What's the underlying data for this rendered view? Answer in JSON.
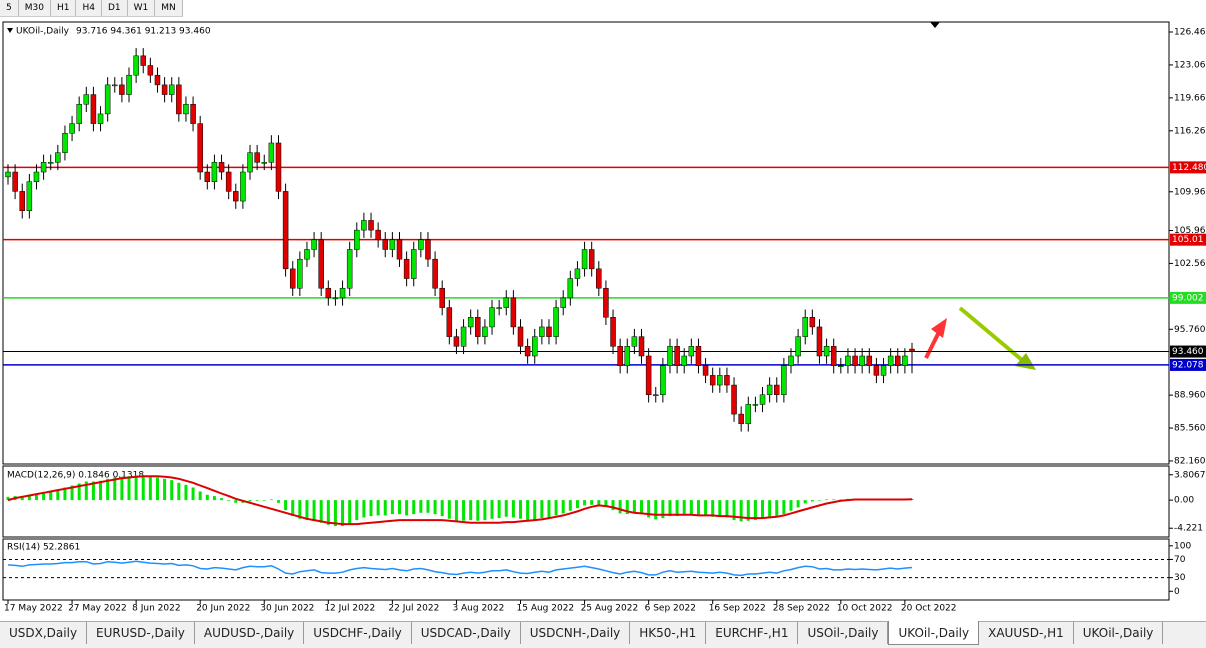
{
  "toolbar": [
    "5",
    "M30",
    "H1",
    "H4",
    "D1",
    "W1",
    "MN"
  ],
  "chart_data": [
    {
      "type": "candlestick",
      "title": "UKOil-,Daily",
      "ohlc_header": "93.716 94.361 91.213 93.460",
      "categories": [
        "17 May 2022",
        null,
        null,
        null,
        null,
        null,
        null,
        null,
        null,
        "27 May 2022",
        null,
        null,
        null,
        null,
        null,
        null,
        null,
        null,
        "8 Jun 2022",
        null,
        null,
        null,
        null,
        null,
        null,
        null,
        null,
        "20 Jun 2022",
        null,
        null,
        null,
        null,
        null,
        null,
        null,
        null,
        "30 Jun 2022",
        null,
        null,
        null,
        null,
        null,
        null,
        null,
        null,
        "12 Jul 2022",
        null,
        null,
        null,
        null,
        null,
        null,
        null,
        null,
        "22 Jul 2022",
        null,
        null,
        null,
        null,
        null,
        null,
        null,
        null,
        "3 Aug 2022",
        null,
        null,
        null,
        null,
        null,
        null,
        null,
        null,
        "15 Aug 2022",
        null,
        null,
        null,
        null,
        null,
        null,
        null,
        null,
        "25 Aug 2022",
        null,
        null,
        null,
        null,
        null,
        null,
        null,
        null,
        "6 Sep 2022",
        null,
        null,
        null,
        null,
        null,
        null,
        null,
        null,
        "16 Sep 2022",
        null,
        null,
        null,
        null,
        null,
        null,
        null,
        null,
        "28 Sep 2022",
        null,
        null,
        null,
        null,
        null,
        null,
        null,
        null,
        "10 Oct 2022",
        null,
        null,
        null,
        null,
        null,
        null,
        null,
        null,
        "20 Oct 2022",
        null
      ],
      "open": [
        111.5,
        112,
        110,
        108,
        111,
        112,
        113,
        113,
        114,
        116,
        117,
        119,
        120,
        117,
        118,
        121,
        121,
        120,
        122,
        124,
        123,
        122,
        121,
        120,
        121,
        118,
        119,
        117,
        112,
        111,
        113,
        112,
        110,
        109,
        112,
        114,
        113,
        113,
        115,
        110,
        102,
        100,
        103,
        104,
        105,
        100,
        99,
        99,
        100,
        104,
        106,
        107,
        106,
        105,
        104,
        105,
        103,
        101,
        104,
        105,
        103,
        100,
        98,
        95,
        94,
        96,
        97,
        95,
        96,
        98,
        98,
        99,
        96,
        94,
        93,
        95,
        96,
        95,
        98,
        99,
        101,
        102,
        104,
        102,
        100,
        97,
        94,
        92,
        94,
        95,
        93,
        89,
        89,
        92,
        94,
        92,
        93,
        94,
        92,
        91,
        90,
        91,
        90,
        87,
        86,
        88,
        88,
        89,
        90,
        89,
        92,
        93,
        95,
        97,
        96,
        93,
        94,
        92,
        92,
        93,
        92,
        93,
        92,
        91,
        92,
        93,
        92,
        93.716
      ],
      "high": [
        112.8,
        112.8,
        110.8,
        111.8,
        112.8,
        113.8,
        113.8,
        114.8,
        116.8,
        117.8,
        119.8,
        120.8,
        120.8,
        118.8,
        121.8,
        121.8,
        121.8,
        122.8,
        124.8,
        124.8,
        123.8,
        122.8,
        121.8,
        121.8,
        121.8,
        119.8,
        119.8,
        117.8,
        112.8,
        113.8,
        113.8,
        112.8,
        110.8,
        112.8,
        114.8,
        114.8,
        113.8,
        115.8,
        115.8,
        110.8,
        102.8,
        103.8,
        104.8,
        105.8,
        105.8,
        100.8,
        99.8,
        100.8,
        104.8,
        106.8,
        107.8,
        107.8,
        106.8,
        105.8,
        105.8,
        105.8,
        103.8,
        104.8,
        105.8,
        105.8,
        103.8,
        100.8,
        98.8,
        95.8,
        96.8,
        97.8,
        97.8,
        96.8,
        98.8,
        98.8,
        99.8,
        99.8,
        96.8,
        94.8,
        95.8,
        96.8,
        96.8,
        98.8,
        99.8,
        101.8,
        102.8,
        104.8,
        104.8,
        102.8,
        100.8,
        97.8,
        94.8,
        94.8,
        95.8,
        95.8,
        93.8,
        89.8,
        92.8,
        94.8,
        94.8,
        93.8,
        94.8,
        94.8,
        92.8,
        91.8,
        91.8,
        91.8,
        90.8,
        87.8,
        88.8,
        88.8,
        89.8,
        90.8,
        90.8,
        92.8,
        93.8,
        95.8,
        97.8,
        97.8,
        96.8,
        94.8,
        94.8,
        92.8,
        93.8,
        93.8,
        93.8,
        93.8,
        92.8,
        92.8,
        93.8,
        93.8,
        93.8,
        94.361
      ],
      "low": [
        110.7,
        109.2,
        107.2,
        107.2,
        110.2,
        111.2,
        112.2,
        112.2,
        113.2,
        115.2,
        116.2,
        118.2,
        116.2,
        116.2,
        117.2,
        120.2,
        119.2,
        119.2,
        121.2,
        122.2,
        121.2,
        120.2,
        119.2,
        119.2,
        117.2,
        117.2,
        116.2,
        111.2,
        110.2,
        110.2,
        111.2,
        109.2,
        108.2,
        108.2,
        111.2,
        112.2,
        112.2,
        112.2,
        109.2,
        101.2,
        99.2,
        99.2,
        102.2,
        103.2,
        99.2,
        98.2,
        98.2,
        98.2,
        99.2,
        103.2,
        105.2,
        105.2,
        104.2,
        103.2,
        103.2,
        102.2,
        100.2,
        100.2,
        103.2,
        102.2,
        99.2,
        97.2,
        94.2,
        93.2,
        93.2,
        95.2,
        94.2,
        94.2,
        95.2,
        97.2,
        97.2,
        95.2,
        93.2,
        92.2,
        92.2,
        94.2,
        94.2,
        94.2,
        97.2,
        98.2,
        100.2,
        101.2,
        101.2,
        99.2,
        96.2,
        93.2,
        91.2,
        91.2,
        93.2,
        92.2,
        88.2,
        88.2,
        88.2,
        91.2,
        91.2,
        91.2,
        92.2,
        91.2,
        90.2,
        89.2,
        89.2,
        89.2,
        86.2,
        85.2,
        85.2,
        87.2,
        87.2,
        88.2,
        88.2,
        88.2,
        91.2,
        92.2,
        94.2,
        95.2,
        92.2,
        92.2,
        91.2,
        91.2,
        91.2,
        91.2,
        91.2,
        91.2,
        90.2,
        90.2,
        91.2,
        91.2,
        91.2,
        91.213
      ],
      "close": [
        112,
        110,
        108,
        111,
        112,
        113,
        113,
        114,
        116,
        117,
        119,
        120,
        117,
        118,
        121,
        121,
        120,
        122,
        124,
        123,
        122,
        121,
        120,
        121,
        118,
        119,
        117,
        112,
        111,
        113,
        112,
        110,
        109,
        112,
        114,
        113,
        113,
        115,
        110,
        102,
        100,
        103,
        104,
        105,
        100,
        99,
        99,
        100,
        104,
        106,
        107,
        106,
        105,
        104,
        105,
        103,
        101,
        104,
        105,
        103,
        100,
        98,
        95,
        94,
        96,
        97,
        95,
        96,
        98,
        98,
        99,
        96,
        94,
        93,
        95,
        96,
        95,
        98,
        99,
        101,
        102,
        104,
        102,
        100,
        97,
        94,
        92,
        94,
        95,
        93,
        89,
        89,
        92,
        94,
        92,
        93,
        94,
        92,
        91,
        90,
        91,
        90,
        87,
        86,
        88,
        88,
        89,
        90,
        89,
        92,
        93,
        95,
        97,
        96,
        93,
        94,
        92,
        92,
        93,
        92,
        93,
        92,
        91,
        92,
        93,
        92,
        93,
        93.46
      ],
      "up_color": "#00e600",
      "down_color": "#e00000",
      "ylim": [
        81.95,
        127.39
      ],
      "yticks": [
        {
          "value": 126.46,
          "label": "126.460"
        },
        {
          "value": 123.06,
          "label": "123.060"
        },
        {
          "value": 119.66,
          "label": "119.660"
        },
        {
          "value": 116.26,
          "label": "116.260"
        },
        {
          "value": 109.96,
          "label": "109.960"
        },
        {
          "value": 105.96,
          "label": "105.960"
        },
        {
          "value": 102.56,
          "label": "102.560"
        },
        {
          "value": 95.76,
          "label": "95.760"
        },
        {
          "value": 88.96,
          "label": "88.960"
        },
        {
          "value": 85.56,
          "label": "85.560"
        },
        {
          "value": 82.16,
          "label": "82.160"
        }
      ],
      "levels": [
        {
          "value": 112.48,
          "label": "112.480",
          "color": "#e00000"
        },
        {
          "value": 105.013,
          "label": "105.01",
          "color": "#e00000"
        },
        {
          "value": 99.002,
          "label": "99.002",
          "color": "#22dd22"
        },
        {
          "value": 93.46,
          "label": "93.460",
          "color": "#000000"
        },
        {
          "value": 92.078,
          "label": "92.078",
          "color": "#0000cc"
        }
      ]
    },
    {
      "type": "macd",
      "title": "MACD(12,26,9) 0.1846 0.1318",
      "ylim": [
        -5.389,
        4.975
      ],
      "yticks": [
        3.8067,
        {
          "value": 0,
          "label": "0.00"
        },
        -4.221
      ],
      "histogram": {
        "color": "#00e600",
        "values": [
          0.5,
          0.6,
          0.6,
          0.8,
          1.0,
          1.2,
          1.4,
          1.6,
          1.9,
          2.2,
          2.5,
          2.8,
          2.8,
          2.9,
          3.2,
          3.4,
          3.5,
          3.6,
          3.7,
          3.7,
          3.6,
          3.4,
          3.2,
          3.0,
          2.6,
          2.3,
          1.9,
          1.3,
          0.8,
          0.6,
          0.3,
          -0.1,
          -0.4,
          -0.4,
          -0.2,
          -0.1,
          -0.1,
          0.1,
          -0.4,
          -1.5,
          -2.4,
          -2.8,
          -3.0,
          -3.0,
          -3.4,
          -3.7,
          -3.9,
          -3.9,
          -3.5,
          -3.0,
          -2.6,
          -2.4,
          -2.3,
          -2.3,
          -2.1,
          -2.1,
          -2.3,
          -2.1,
          -1.9,
          -1.9,
          -2.1,
          -2.4,
          -2.8,
          -3.1,
          -3.1,
          -3.0,
          -3.1,
          -3.0,
          -2.8,
          -2.7,
          -2.5,
          -2.6,
          -2.8,
          -3.0,
          -2.9,
          -2.7,
          -2.6,
          -2.3,
          -2.0,
          -1.6,
          -1.2,
          -0.8,
          -0.7,
          -0.8,
          -1.0,
          -1.5,
          -2.0,
          -2.1,
          -2.0,
          -2.1,
          -2.6,
          -2.9,
          -2.7,
          -2.4,
          -2.4,
          -2.3,
          -2.2,
          -2.3,
          -2.4,
          -2.5,
          -2.5,
          -2.6,
          -3.0,
          -3.2,
          -3.1,
          -3.0,
          -2.8,
          -2.6,
          -2.5,
          -2.1,
          -1.6,
          -1.1,
          -0.5,
          -0.2,
          0.0,
          0.1,
          0.1,
          0.1,
          0.2,
          0.2,
          0.2,
          0.2,
          0.2,
          0.1,
          0.2,
          0.2,
          0.2,
          0.1846
        ]
      },
      "signal": {
        "color": "#dd0000",
        "values": [
          0.0,
          0.3,
          0.5,
          0.7,
          0.9,
          1.1,
          1.3,
          1.5,
          1.7,
          1.9,
          2.1,
          2.3,
          2.5,
          2.7,
          2.9,
          3.1,
          3.3,
          3.4,
          3.5,
          3.6,
          3.6,
          3.6,
          3.5,
          3.4,
          3.2,
          2.9,
          2.6,
          2.2,
          1.8,
          1.4,
          1.0,
          0.6,
          0.2,
          -0.1,
          -0.4,
          -0.7,
          -1.0,
          -1.3,
          -1.6,
          -1.9,
          -2.2,
          -2.5,
          -2.8,
          -3.0,
          -3.2,
          -3.4,
          -3.5,
          -3.6,
          -3.6,
          -3.6,
          -3.5,
          -3.4,
          -3.3,
          -3.2,
          -3.1,
          -3.0,
          -3.0,
          -3.0,
          -3.0,
          -3.0,
          -3.0,
          -3.0,
          -3.1,
          -3.2,
          -3.3,
          -3.4,
          -3.4,
          -3.4,
          -3.4,
          -3.4,
          -3.3,
          -3.3,
          -3.2,
          -3.1,
          -3.0,
          -2.9,
          -2.7,
          -2.5,
          -2.3,
          -2.0,
          -1.7,
          -1.3,
          -1.0,
          -0.8,
          -0.9,
          -1.1,
          -1.4,
          -1.7,
          -1.9,
          -2.0,
          -2.1,
          -2.2,
          -2.2,
          -2.2,
          -2.2,
          -2.2,
          -2.2,
          -2.3,
          -2.3,
          -2.3,
          -2.4,
          -2.4,
          -2.5,
          -2.6,
          -2.7,
          -2.7,
          -2.7,
          -2.6,
          -2.5,
          -2.3,
          -2.0,
          -1.7,
          -1.4,
          -1.1,
          -0.8,
          -0.5,
          -0.3,
          -0.1,
          0.0,
          0.1,
          0.1,
          0.1,
          0.1,
          0.1,
          0.1,
          0.1,
          0.1,
          0.1318
        ]
      }
    },
    {
      "type": "line",
      "title": "RSI(14) 52.2861",
      "ylim": [
        -17,
        112.8
      ],
      "yticks": [
        100,
        70,
        30,
        0
      ],
      "levels": [
        70,
        30
      ],
      "color": "#1e90ff",
      "values": [
        58,
        57,
        55,
        58,
        59,
        60,
        60,
        61,
        63,
        63,
        65,
        65,
        60,
        61,
        65,
        64,
        62,
        64,
        66,
        64,
        62,
        61,
        60,
        61,
        57,
        58,
        56,
        50,
        49,
        52,
        51,
        49,
        47,
        52,
        55,
        54,
        54,
        56,
        49,
        40,
        38,
        43,
        45,
        47,
        41,
        40,
        40,
        42,
        47,
        50,
        52,
        50,
        49,
        48,
        50,
        47,
        45,
        49,
        50,
        47,
        43,
        41,
        38,
        37,
        40,
        42,
        40,
        42,
        45,
        45,
        47,
        43,
        40,
        39,
        42,
        44,
        42,
        47,
        49,
        51,
        53,
        55,
        52,
        49,
        45,
        41,
        38,
        42,
        44,
        41,
        36,
        36,
        42,
        45,
        42,
        43,
        44,
        42,
        41,
        40,
        42,
        40,
        36,
        35,
        38,
        38,
        40,
        42,
        40,
        45,
        48,
        52,
        55,
        54,
        49,
        50,
        47,
        47,
        49,
        48,
        49,
        48,
        47,
        49,
        51,
        49,
        51,
        52.2861
      ]
    }
  ],
  "tabs": [
    "USDX,Daily",
    "EURUSD-,Daily",
    "AUDUSD-,Daily",
    "USDCHF-,Daily",
    "USDCAD-,Daily",
    "USDCNH-,Daily",
    "HK50-,H1",
    "EURCHF-,H1",
    "USOil-,Daily",
    "UKOil-,Daily",
    "XAUUSD-,H1",
    "UKOil-,Daily"
  ],
  "active_tab": 9
}
